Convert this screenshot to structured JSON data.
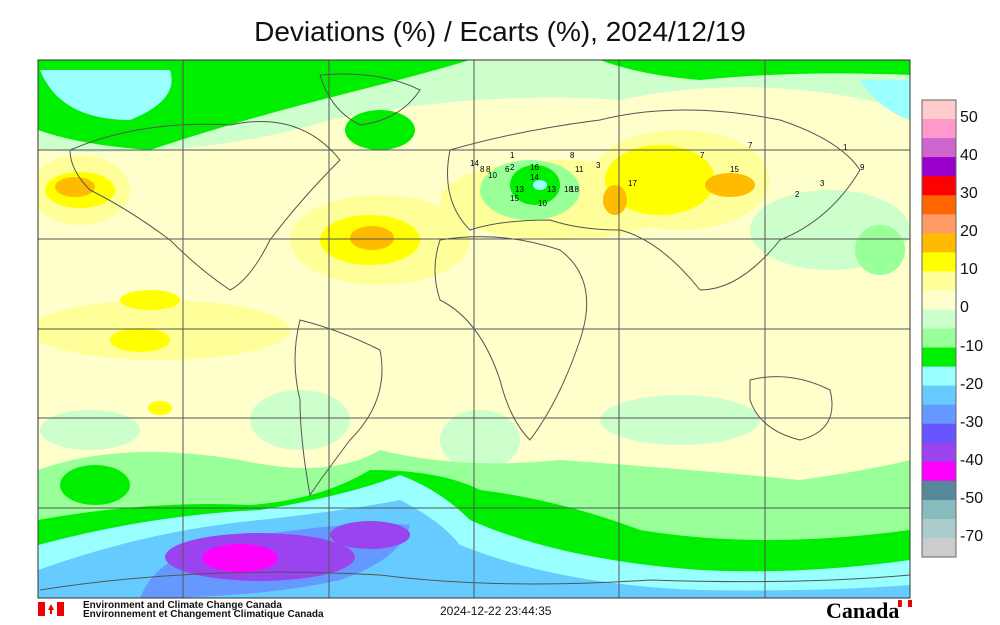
{
  "title": "Deviations (%) / Ecarts (%), 2024/12/19",
  "legend": {
    "bands": [
      {
        "color": "#ffcccc"
      },
      {
        "color": "#ff99cc"
      },
      {
        "color": "#cc66cc"
      },
      {
        "color": "#9900cc"
      },
      {
        "color": "#ff0000"
      },
      {
        "color": "#ff6600"
      },
      {
        "color": "#ff9966"
      },
      {
        "color": "#ffbb00"
      },
      {
        "color": "#ffff00"
      },
      {
        "color": "#ffff99"
      },
      {
        "color": "#ffffcc"
      },
      {
        "color": "#ccffcc"
      },
      {
        "color": "#99ff99"
      },
      {
        "color": "#00ee00"
      },
      {
        "color": "#99ffff"
      },
      {
        "color": "#66ccff"
      },
      {
        "color": "#6699ff"
      },
      {
        "color": "#6655ff"
      },
      {
        "color": "#9944ee"
      },
      {
        "color": "#ff00ff"
      },
      {
        "color": "#558899"
      },
      {
        "color": "#88bbbb"
      },
      {
        "color": "#aacccc"
      },
      {
        "color": "#cccccc"
      }
    ],
    "labels": [
      "50",
      "40",
      "30",
      "20",
      "10",
      "0",
      "-10",
      "-20",
      "-30",
      "-40",
      "-50",
      "-70"
    ]
  },
  "station_labels": [
    "14",
    "1",
    "8",
    "16",
    "14",
    "8",
    "13",
    "7",
    "7",
    "15",
    "3",
    "1",
    "6",
    "11",
    "15",
    "10",
    "10",
    "13",
    "18",
    "17",
    "2",
    "3",
    "9",
    "8",
    "18",
    "2"
  ],
  "footer": {
    "org_en": "Environment and Climate Change Canada",
    "org_fr": "Environnement et Changement Climatique Canada",
    "timestamp": "2024-12-22 23:44:35",
    "wordmark": "Canada"
  }
}
